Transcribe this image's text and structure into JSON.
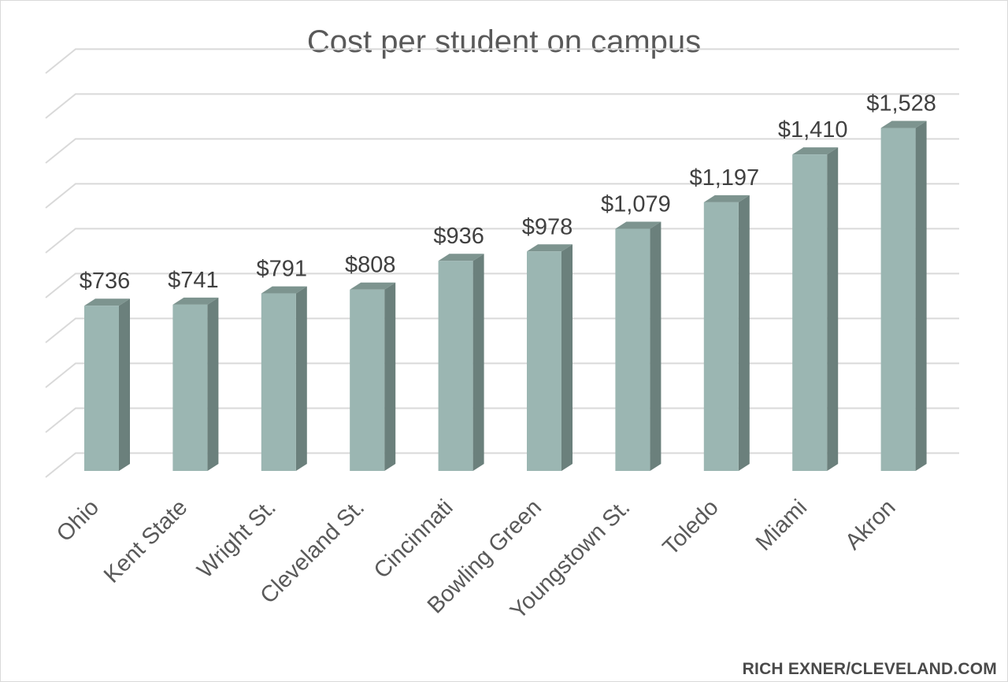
{
  "chart_data": {
    "type": "bar",
    "title": "Cost per student on campus",
    "categories": [
      "Ohio",
      "Kent State",
      "Wright St.",
      "Cleveland St.",
      "Cincinnati",
      "Bowling Green",
      "Youngstown St.",
      "Toledo",
      "Miami",
      "Akron"
    ],
    "values": [
      736,
      741,
      791,
      808,
      936,
      978,
      1079,
      1197,
      1410,
      1528
    ],
    "data_labels": [
      "$736",
      "$741",
      "$791",
      "$808",
      "$936",
      "$978",
      "$1,079",
      "$1,197",
      "$1,410",
      "$1,528"
    ],
    "xlabel": "",
    "ylabel": "",
    "ylim": [
      0,
      1800
    ],
    "grid": true,
    "legend": "none",
    "style": "3d-column"
  },
  "credit": "RICH EXNER/CLEVELAND.COM",
  "colors": {
    "bar_front": "#9bb6b2",
    "bar_side": "#6b807c",
    "bar_top": "#7d948f",
    "grid": "#d9d9d9"
  }
}
